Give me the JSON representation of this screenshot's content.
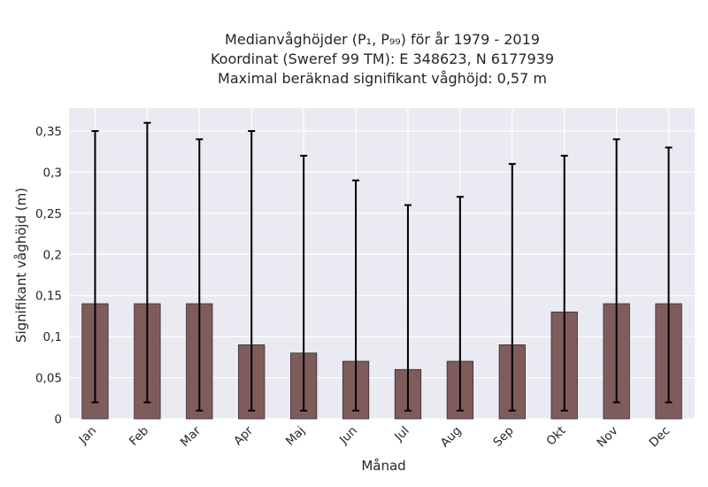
{
  "chart_data": {
    "type": "bar",
    "title_lines": [
      "Medianvåghöjder (P₁, P₉₉) för år 1979 - 2019",
      "Koordinat (Sweref 99 TM): E 348623, N 6177939",
      "Maximal beräknad signifikant våghöjd: 0,57 m"
    ],
    "xlabel": "Månad",
    "ylabel": "Signifikant våghöjd (m)",
    "categories": [
      "Jan",
      "Feb",
      "Mar",
      "Apr",
      "Maj",
      "Jun",
      "Jul",
      "Aug",
      "Sep",
      "Okt",
      "Nov",
      "Dec"
    ],
    "values": [
      0.14,
      0.14,
      0.14,
      0.09,
      0.08,
      0.07,
      0.06,
      0.07,
      0.09,
      0.13,
      0.14,
      0.14
    ],
    "p1": [
      0.02,
      0.02,
      0.01,
      0.01,
      0.01,
      0.01,
      0.01,
      0.01,
      0.01,
      0.01,
      0.02,
      0.02
    ],
    "p99": [
      0.35,
      0.36,
      0.34,
      0.35,
      0.32,
      0.29,
      0.26,
      0.27,
      0.31,
      0.32,
      0.34,
      0.33
    ],
    "yticks": [
      0,
      0.05,
      0.1,
      0.15,
      0.2,
      0.25,
      0.3,
      0.35
    ],
    "ytick_labels": [
      "0",
      "0,05",
      "0,1",
      "0,15",
      "0,2",
      "0,25",
      "0,3",
      "0,35"
    ],
    "ylim": [
      0,
      0.378
    ],
    "grid": true,
    "colors": {
      "bar": "#7f5c5c",
      "bar_edge": "#3a2a2a",
      "errorbar": "#000000",
      "plot_background": "#eaeaf2",
      "grid": "#ffffff"
    }
  }
}
